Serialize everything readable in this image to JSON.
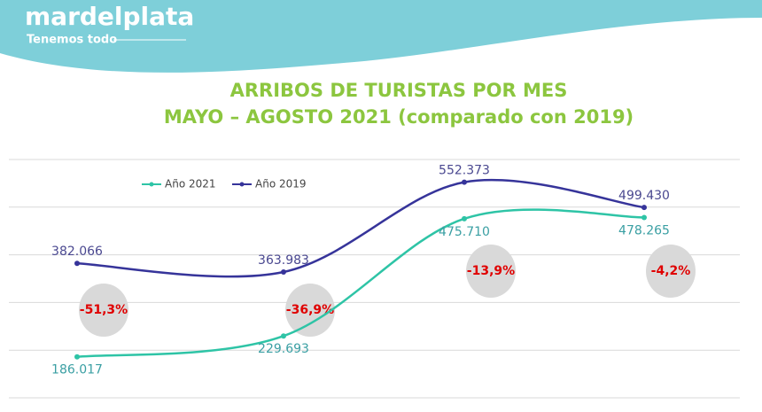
{
  "header": {
    "brand": "mardelplata",
    "tagline": "Tenemos todo"
  },
  "chart_data": {
    "type": "line",
    "title": "ARRIBOS DE TURISTAS POR MES",
    "subtitle": "MAYO – AGOSTO 2021  (comparado con 2019)",
    "categories": [
      null,
      null,
      null,
      null
    ],
    "series": [
      {
        "name": "Año 2021",
        "color": "#2ec4a6",
        "label_color": "#3a9fa3",
        "values": [
          186017,
          229693,
          475710,
          478265
        ],
        "value_labels": [
          "186.017",
          "229.693",
          "475.710",
          "478.265"
        ]
      },
      {
        "name": "Año 2019",
        "color": "#36349a",
        "label_color": "#4a4890",
        "values": [
          382066,
          363983,
          552373,
          499430
        ],
        "value_labels": [
          "382.066",
          "363.983",
          "552.373",
          "499.430"
        ]
      }
    ],
    "annotations": [
      "-51,3%",
      "-36,9%",
      "-13,9%",
      "-4,2%"
    ],
    "ylim": [
      100000,
      600000
    ],
    "yticks": [
      100000,
      200000,
      300000,
      400000,
      500000,
      600000
    ],
    "grid": true
  }
}
